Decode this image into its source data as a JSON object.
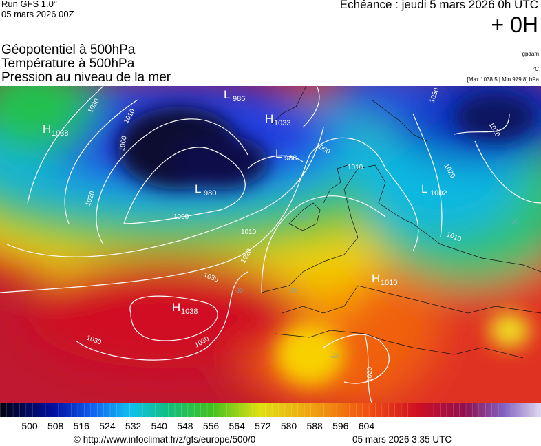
{
  "header": {
    "run": "Run GFS 1.0°",
    "run_date": "05 mars 2026 00Z",
    "valid": "Echéance : jeudi 5 mars 2026 0h UTC",
    "lead": "+ 0H",
    "titles": [
      "Géopotentiel à 500hPa",
      "Température à 500hPa",
      "Pression au niveau de la mer"
    ],
    "units": [
      "gpdam",
      "°C",
      "[Max 1038.5 | Min 979.8] hPa"
    ]
  },
  "map": {
    "centers": [
      {
        "type": "H",
        "value": 1038
      },
      {
        "type": "L",
        "value": 986
      },
      {
        "type": "H",
        "value": 1033
      },
      {
        "type": "L",
        "value": 988
      },
      {
        "type": "L",
        "value": 980
      },
      {
        "type": "H",
        "value": 1038
      },
      {
        "type": "L",
        "value": 1002
      },
      {
        "type": "H",
        "value": 1010
      }
    ],
    "isobar_labels": [
      1030,
      1010,
      1000,
      1020,
      1000,
      1010,
      1020,
      1030,
      1030,
      1030,
      1020,
      1020,
      1020,
      1030,
      1010,
      1010,
      1000
    ],
    "temperature_labels": [
      -30,
      -30,
      -20,
      -20,
      -20,
      -30
    ]
  },
  "colorbar": {
    "ticks": [
      500,
      508,
      516,
      524,
      532,
      540,
      548,
      556,
      564,
      572,
      580,
      588,
      596,
      604
    ]
  },
  "footer": {
    "url": "© http://www.infoclimat.fr/z/gfs/europe/500/0",
    "generated": "05 mars 2026  3:35 UTC"
  }
}
